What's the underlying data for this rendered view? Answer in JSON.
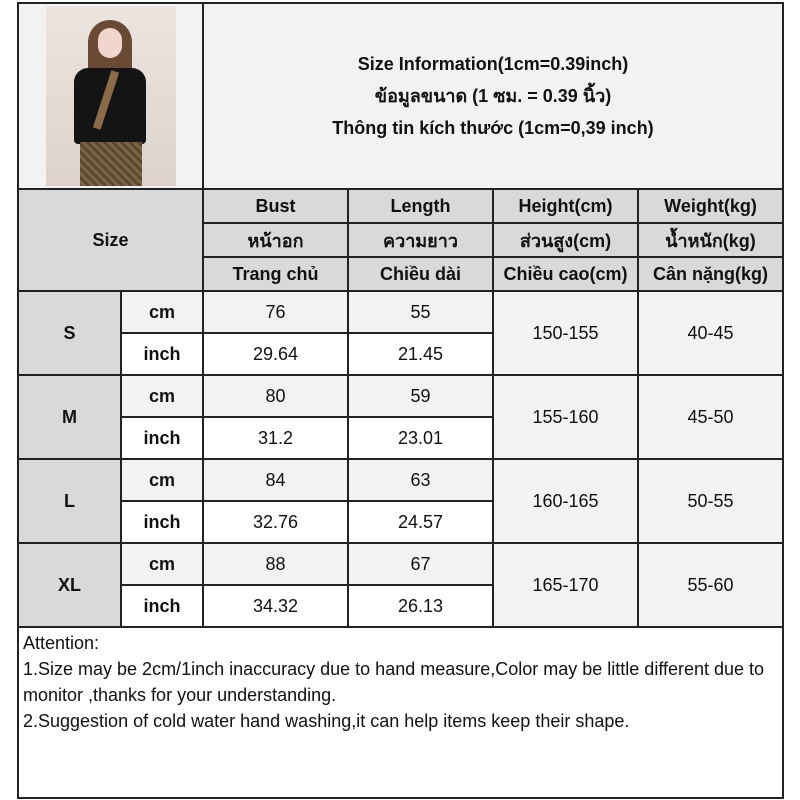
{
  "title": {
    "en": "Size Information(1cm=0.39inch)",
    "th": "ข้อมูลขนาด (1 ซม. = 0.39 นิ้ว)",
    "vi": "Thông tin kích thước (1cm=0,39 inch)"
  },
  "product_image": {
    "alt": "model wearing black short-sleeve top with leopard scarf and skirt"
  },
  "size_header": "Size",
  "columns": [
    {
      "en": "Bust",
      "th": "หน้าอก",
      "vi": "Trang chủ"
    },
    {
      "en": "Length",
      "th": "ความยาว",
      "vi": "Chiều dài"
    },
    {
      "en": "Height(cm)",
      "th": "ส่วนสูง(cm)",
      "vi": "Chiều cao(cm)"
    },
    {
      "en": "Weight(kg)",
      "th": "น้ำหนัก(kg)",
      "vi": "Cân nặng(kg)"
    }
  ],
  "units": {
    "cm": "cm",
    "inch": "inch"
  },
  "rows": [
    {
      "size": "S",
      "cm": [
        "76",
        "55"
      ],
      "inch": [
        "29.64",
        "21.45"
      ],
      "height": "150-155",
      "weight": "40-45"
    },
    {
      "size": "M",
      "cm": [
        "80",
        "59"
      ],
      "inch": [
        "31.2",
        "23.01"
      ],
      "height": "155-160",
      "weight": "45-50"
    },
    {
      "size": "L",
      "cm": [
        "84",
        "63"
      ],
      "inch": [
        "32.76",
        "24.57"
      ],
      "height": "160-165",
      "weight": "50-55"
    },
    {
      "size": "XL",
      "cm": [
        "88",
        "67"
      ],
      "inch": [
        "34.32",
        "26.13"
      ],
      "height": "165-170",
      "weight": "55-60"
    }
  ],
  "attention": {
    "heading": "Attention:",
    "notes": [
      "1.Size may be 2cm/1inch inaccuracy due to hand measure,Color may be little different due to monitor ,thanks for your understanding.",
      "2.Suggestion of cold water hand washing,it can help items keep their shape."
    ]
  },
  "colors": {
    "header_bg": "#d9d9d9",
    "light_bg": "#f2f2f2",
    "border": "#222222"
  }
}
